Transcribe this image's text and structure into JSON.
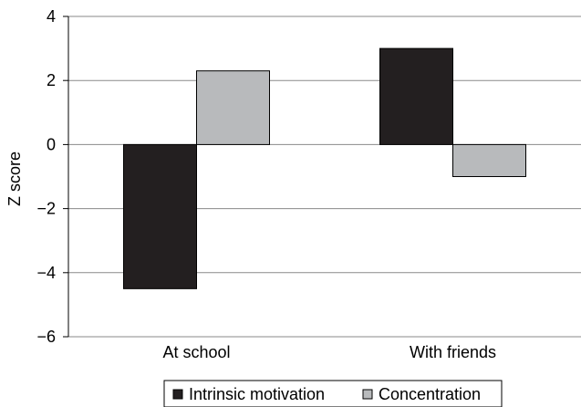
{
  "chart_data": {
    "type": "bar",
    "title": "",
    "xlabel": "",
    "ylabel": "Z score",
    "ylim": [
      -6,
      4
    ],
    "yticks": [
      4,
      2,
      0,
      -2,
      -4,
      -6
    ],
    "ytick_labels": [
      "4",
      "2",
      "0",
      "−2",
      "−4",
      "−6"
    ],
    "grid": true,
    "legend_position": "bottom",
    "categories": [
      "At school",
      "With friends"
    ],
    "series": [
      {
        "name": "Intrinsic motivation",
        "color": "#231f20",
        "values": [
          -4.5,
          3.0
        ]
      },
      {
        "name": "Concentration",
        "color": "#b8babc",
        "values": [
          2.3,
          -1.0
        ]
      }
    ]
  }
}
